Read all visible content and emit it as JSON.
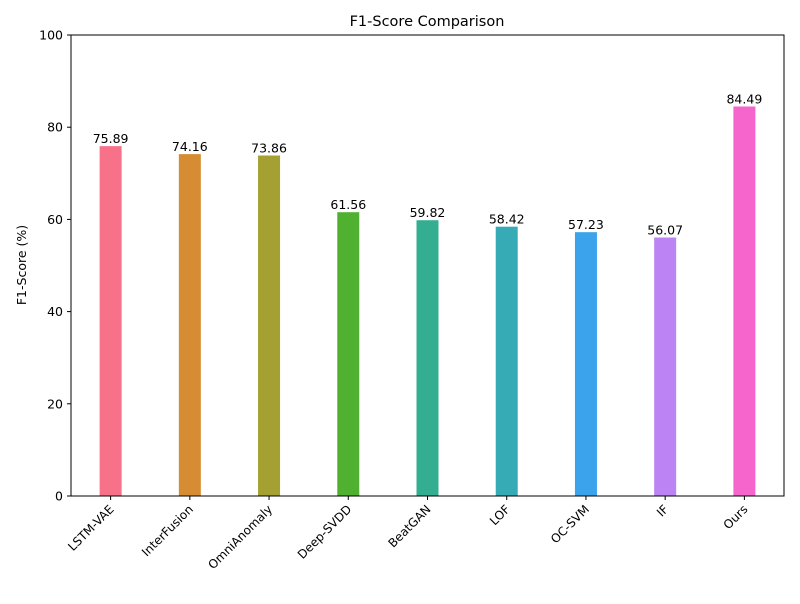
{
  "chart_data": {
    "type": "bar",
    "title": "F1-Score Comparison",
    "xlabel": "",
    "ylabel": "F1-Score (%)",
    "ylim": [
      0,
      100
    ],
    "yticks": [
      0,
      20,
      40,
      60,
      80,
      100
    ],
    "grid": false,
    "legend": "none",
    "categories": [
      "LSTM-VAE",
      "InterFusion",
      "OmniAnomaly",
      "Deep-SVDD",
      "BeatGAN",
      "LOF",
      "OC-SVM",
      "IF",
      "Ours"
    ],
    "values": [
      75.89,
      74.16,
      73.86,
      61.56,
      59.82,
      58.42,
      57.23,
      56.07,
      84.49
    ],
    "data_labels": [
      "75.89",
      "74.16",
      "73.86",
      "61.56",
      "59.82",
      "58.42",
      "57.23",
      "56.07",
      "84.49"
    ],
    "colors": [
      "#f77189",
      "#d58c32",
      "#a4a031",
      "#50b131",
      "#34ae91",
      "#37abb5",
      "#3ba3ec",
      "#bb83f4",
      "#f565cc"
    ]
  }
}
